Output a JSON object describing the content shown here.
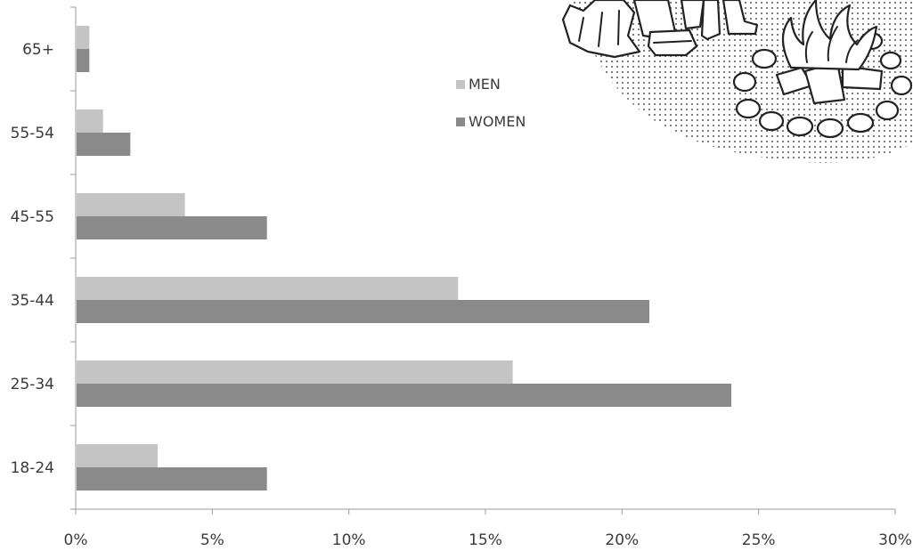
{
  "chart_data": {
    "type": "bar",
    "orientation": "horizontal",
    "categories": [
      "18-24",
      "25-34",
      "35-44",
      "45-55",
      "55-54",
      "65+"
    ],
    "category_labels": [
      "18‑24",
      "25‑34",
      "35‑44",
      "45‑55",
      "55‑54",
      "65+"
    ],
    "series": [
      {
        "name": "MEN",
        "values": [
          3,
          16,
          14,
          4,
          1,
          0.5
        ],
        "color": "#c4c4c4"
      },
      {
        "name": "WOMEN",
        "values": [
          7,
          24,
          21,
          7,
          2,
          0.5
        ],
        "color": "#8a8a8a"
      }
    ],
    "x_ticks": [
      0,
      5,
      10,
      15,
      20,
      25,
      30
    ],
    "x_tick_labels": [
      "0%",
      "5%",
      "10%",
      "15%",
      "20%",
      "25%",
      "30%"
    ],
    "xlim": [
      0,
      30
    ],
    "title": "",
    "xlabel": "",
    "ylabel": "",
    "grid": false,
    "legend_position": "top-center"
  },
  "illustration": {
    "icon": "campfire-illustration"
  }
}
